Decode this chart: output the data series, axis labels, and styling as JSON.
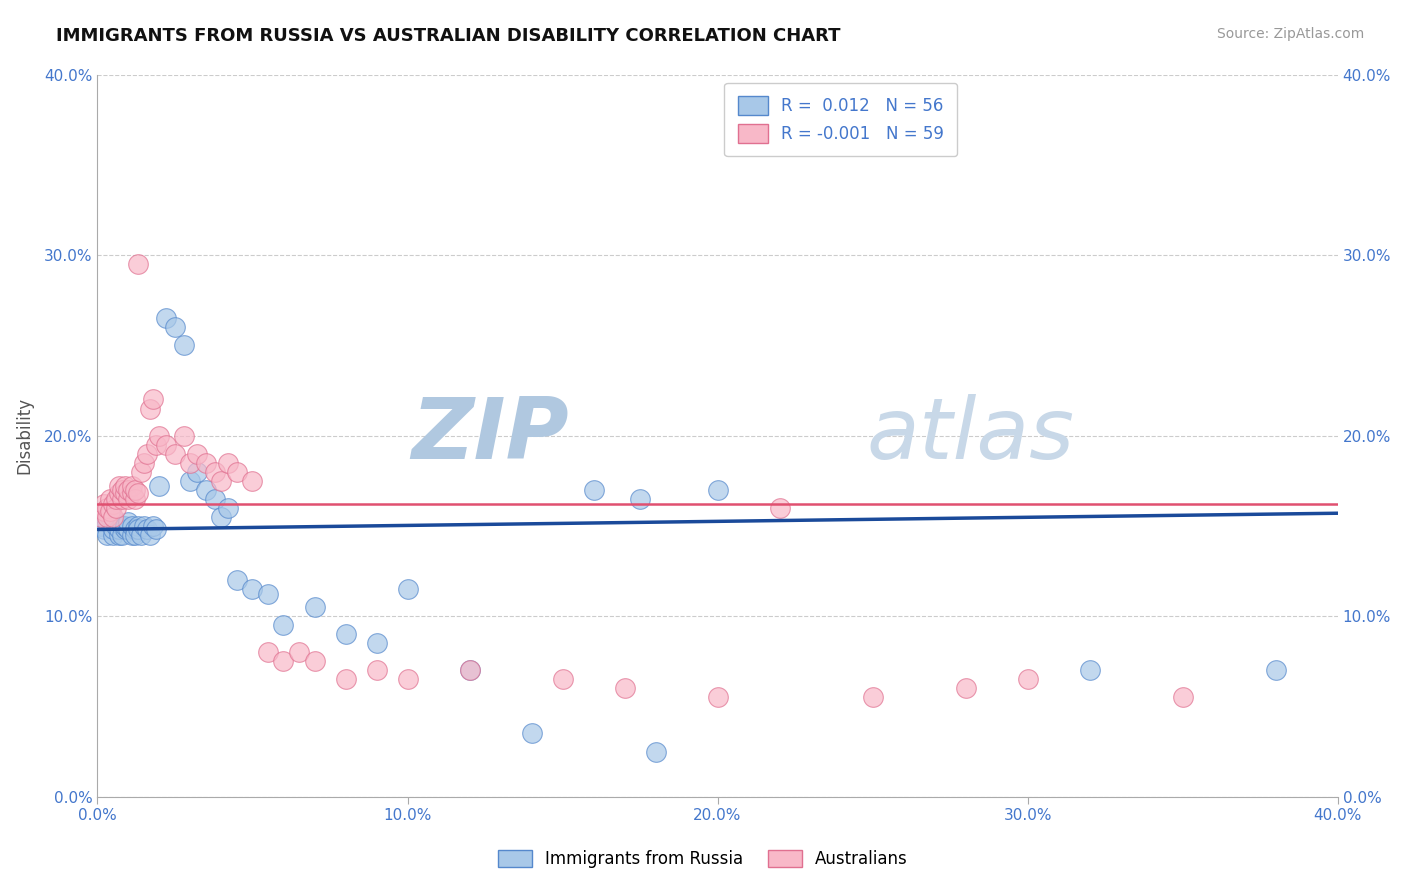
{
  "title": "IMMIGRANTS FROM RUSSIA VS AUSTRALIAN DISABILITY CORRELATION CHART",
  "source": "Source: ZipAtlas.com",
  "ylabel": "Disability",
  "xlim": [
    0.0,
    0.4
  ],
  "ylim": [
    0.0,
    0.4
  ],
  "xticks": [
    0.0,
    0.1,
    0.2,
    0.3,
    0.4
  ],
  "yticks": [
    0.0,
    0.1,
    0.2,
    0.3,
    0.4
  ],
  "xtick_labels": [
    "0.0%",
    "10.0%",
    "20.0%",
    "30.0%",
    "40.0%"
  ],
  "ytick_labels": [
    "0.0%",
    "10.0%",
    "20.0%",
    "30.0%",
    "40.0%"
  ],
  "blue_color": "#a8c8e8",
  "blue_edge_color": "#5588cc",
  "pink_color": "#f8b8c8",
  "pink_edge_color": "#e07090",
  "blue_line_color": "#1a4a9a",
  "pink_line_color": "#e05070",
  "watermark": "ZIPatlas",
  "watermark_color": "#d0dff0",
  "blue_scatter_x": [
    0.001,
    0.002,
    0.003,
    0.003,
    0.004,
    0.004,
    0.005,
    0.005,
    0.006,
    0.006,
    0.007,
    0.007,
    0.008,
    0.008,
    0.009,
    0.009,
    0.01,
    0.01,
    0.011,
    0.011,
    0.012,
    0.012,
    0.013,
    0.013,
    0.014,
    0.015,
    0.016,
    0.017,
    0.018,
    0.019,
    0.02,
    0.022,
    0.025,
    0.028,
    0.03,
    0.032,
    0.035,
    0.038,
    0.04,
    0.042,
    0.045,
    0.05,
    0.055,
    0.06,
    0.07,
    0.08,
    0.09,
    0.1,
    0.12,
    0.14,
    0.16,
    0.175,
    0.18,
    0.2,
    0.32,
    0.38
  ],
  "blue_scatter_y": [
    0.15,
    0.148,
    0.152,
    0.145,
    0.155,
    0.158,
    0.145,
    0.148,
    0.15,
    0.152,
    0.145,
    0.148,
    0.15,
    0.145,
    0.148,
    0.15,
    0.148,
    0.152,
    0.145,
    0.15,
    0.148,
    0.145,
    0.15,
    0.148,
    0.145,
    0.15,
    0.148,
    0.145,
    0.15,
    0.148,
    0.172,
    0.265,
    0.26,
    0.25,
    0.175,
    0.18,
    0.17,
    0.165,
    0.155,
    0.16,
    0.12,
    0.115,
    0.112,
    0.095,
    0.105,
    0.09,
    0.085,
    0.115,
    0.07,
    0.035,
    0.17,
    0.165,
    0.025,
    0.17,
    0.07,
    0.07
  ],
  "pink_scatter_x": [
    0.001,
    0.002,
    0.002,
    0.003,
    0.003,
    0.004,
    0.004,
    0.005,
    0.005,
    0.006,
    0.006,
    0.007,
    0.007,
    0.008,
    0.008,
    0.009,
    0.009,
    0.01,
    0.01,
    0.011,
    0.011,
    0.012,
    0.012,
    0.013,
    0.013,
    0.014,
    0.015,
    0.016,
    0.017,
    0.018,
    0.019,
    0.02,
    0.022,
    0.025,
    0.028,
    0.03,
    0.032,
    0.035,
    0.038,
    0.04,
    0.042,
    0.045,
    0.05,
    0.055,
    0.06,
    0.065,
    0.07,
    0.08,
    0.09,
    0.1,
    0.12,
    0.15,
    0.17,
    0.2,
    0.22,
    0.25,
    0.28,
    0.3,
    0.35
  ],
  "pink_scatter_y": [
    0.155,
    0.158,
    0.162,
    0.155,
    0.16,
    0.165,
    0.158,
    0.162,
    0.155,
    0.16,
    0.165,
    0.168,
    0.172,
    0.165,
    0.17,
    0.168,
    0.172,
    0.165,
    0.17,
    0.168,
    0.172,
    0.165,
    0.17,
    0.168,
    0.295,
    0.18,
    0.185,
    0.19,
    0.215,
    0.22,
    0.195,
    0.2,
    0.195,
    0.19,
    0.2,
    0.185,
    0.19,
    0.185,
    0.18,
    0.175,
    0.185,
    0.18,
    0.175,
    0.08,
    0.075,
    0.08,
    0.075,
    0.065,
    0.07,
    0.065,
    0.07,
    0.065,
    0.06,
    0.055,
    0.16,
    0.055,
    0.06,
    0.065,
    0.055
  ],
  "blue_trend_y_start": 0.148,
  "blue_trend_y_end": 0.157,
  "pink_trend_y_start": 0.162,
  "pink_trend_y_end": 0.162,
  "legend_blue_R": "0.012",
  "legend_blue_N": "56",
  "legend_pink_R": "-0.001",
  "legend_pink_N": "59"
}
